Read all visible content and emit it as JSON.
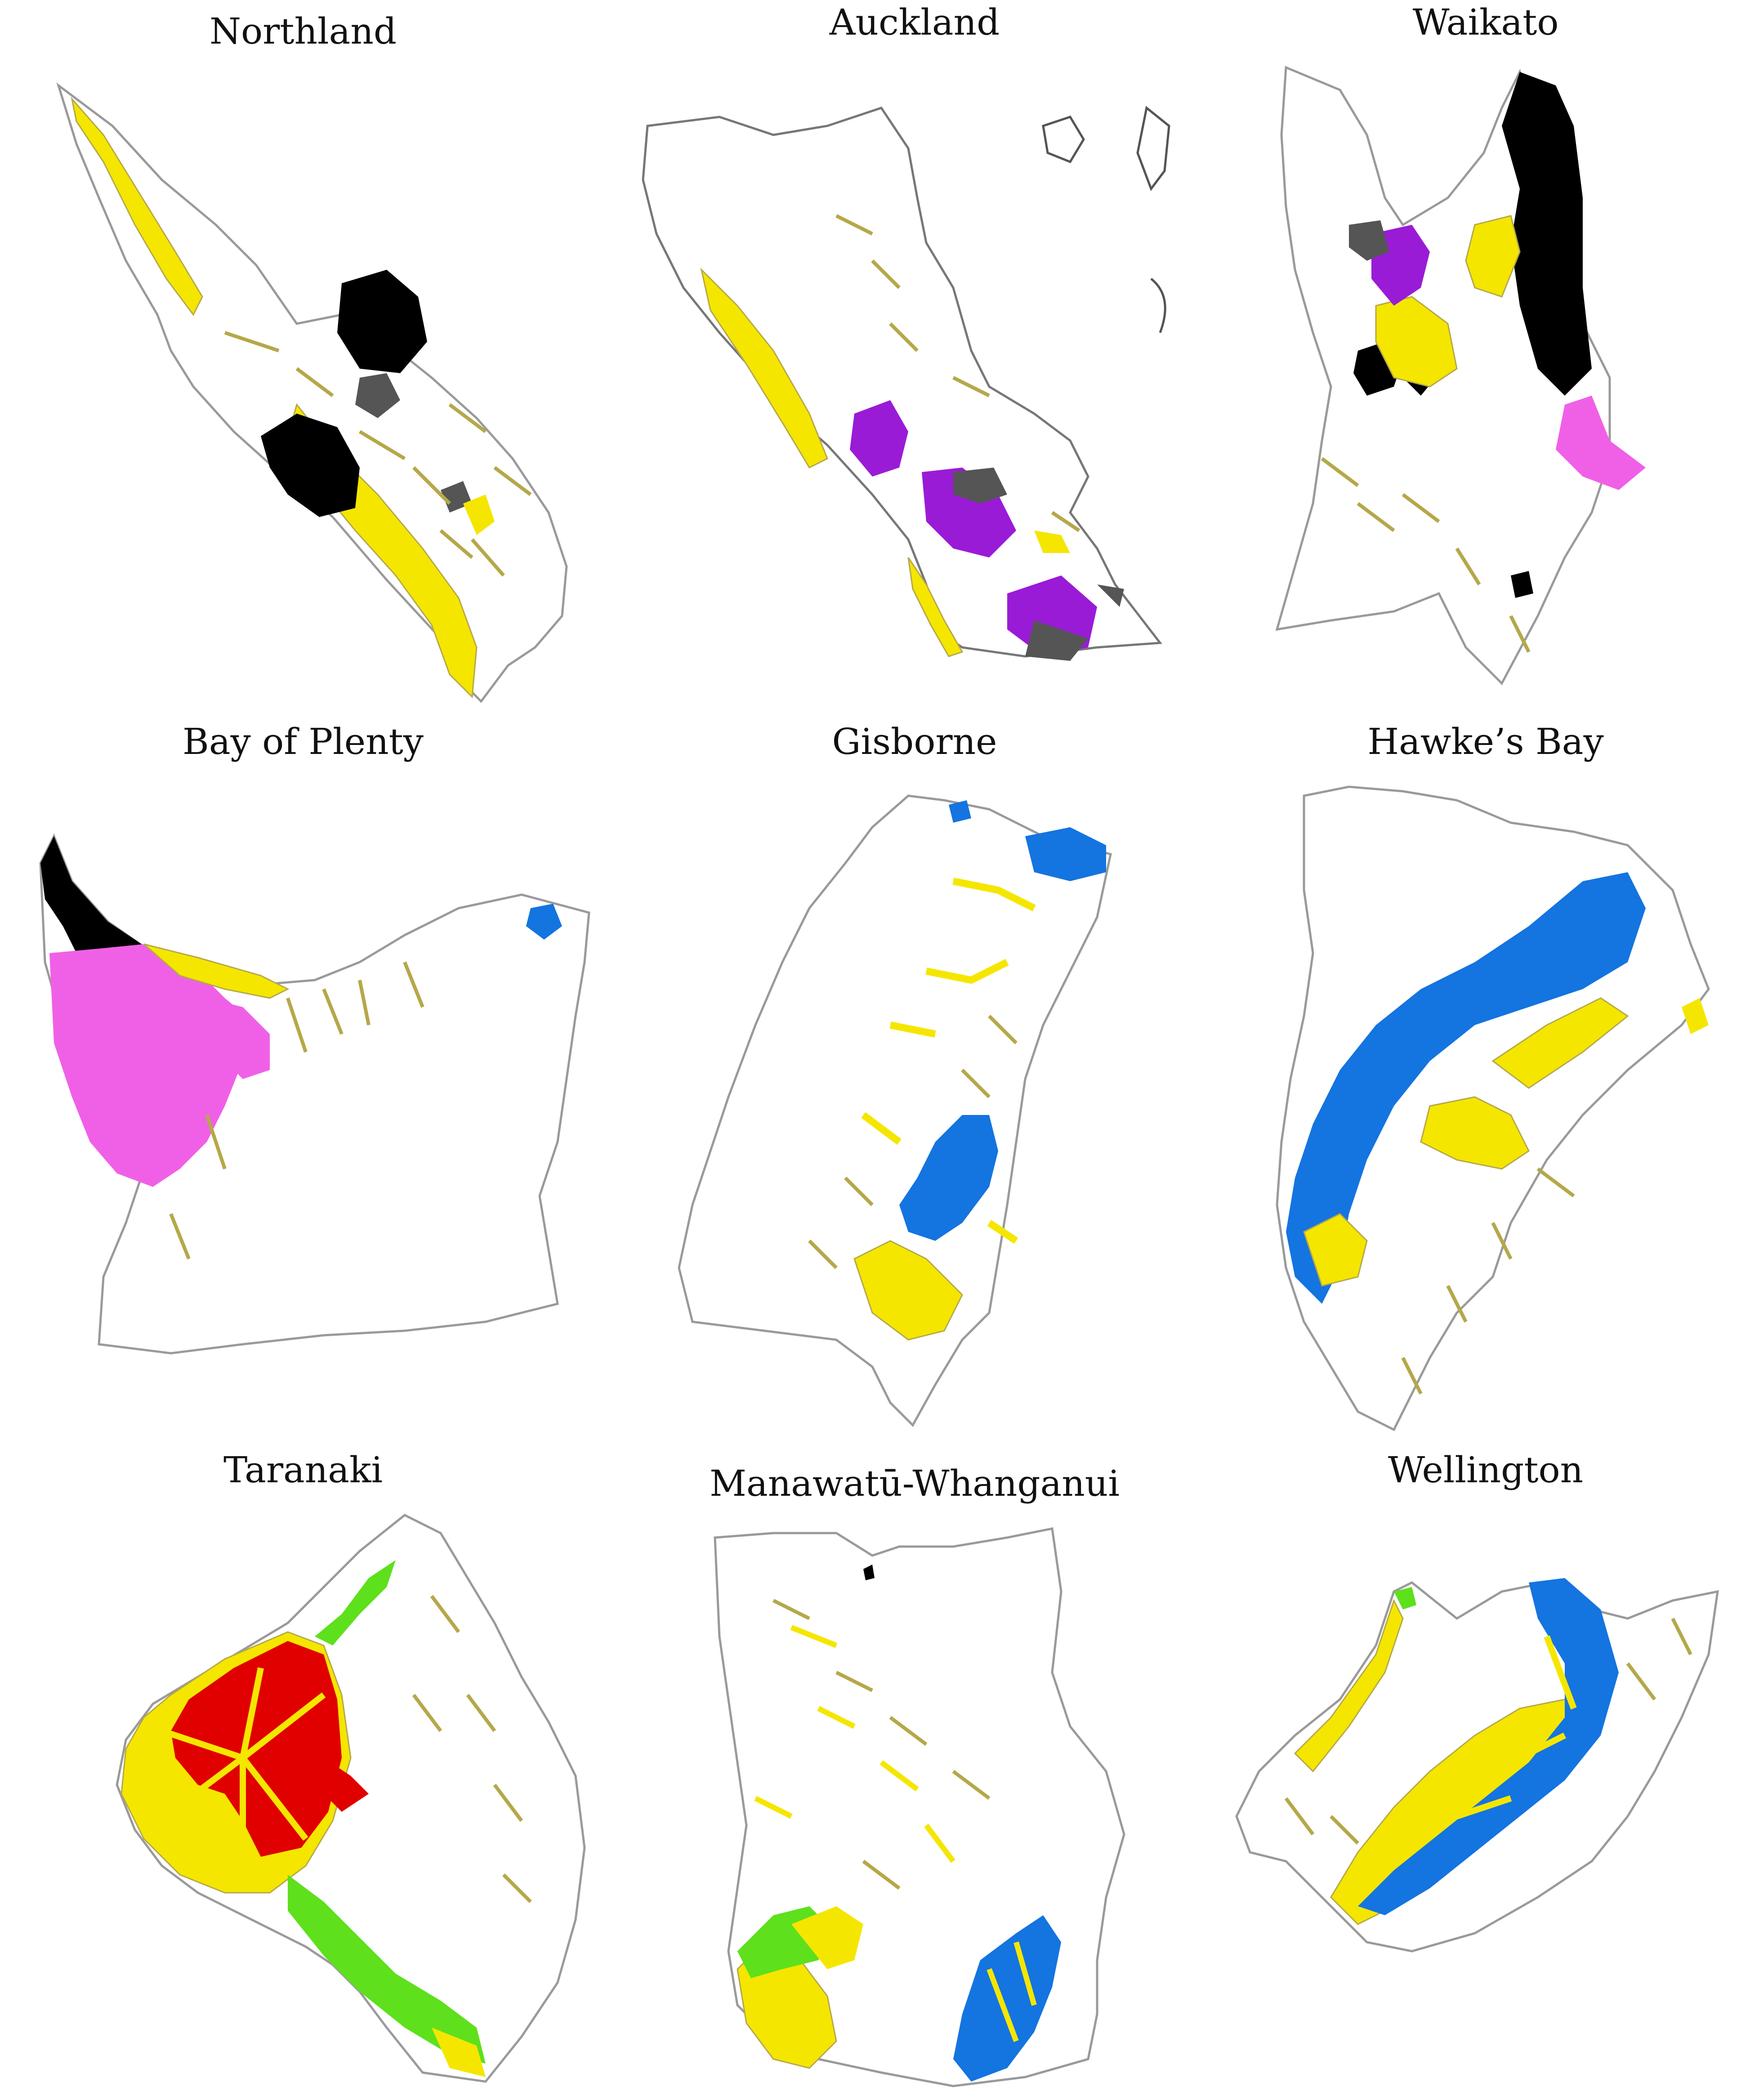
{
  "regions": [
    {
      "id": "northland",
      "title": "Northland"
    },
    {
      "id": "auckland",
      "title": "Auckland"
    },
    {
      "id": "waikato",
      "title": "Waikato"
    },
    {
      "id": "bay-of-plenty",
      "title": "Bay of Plenty"
    },
    {
      "id": "gisborne",
      "title": "Gisborne"
    },
    {
      "id": "hawkes-bay",
      "title": "Hawke’s Bay"
    },
    {
      "id": "taranaki",
      "title": "Taranaki"
    },
    {
      "id": "manawatu-whanganui",
      "title": "Manawatū-Whanganui"
    },
    {
      "id": "wellington",
      "title": "Wellington"
    }
  ],
  "colors": {
    "outline": "#9a9a9a",
    "yellow": "#f5e600",
    "olive": "#b5a84a",
    "black": "#000000",
    "dark_grey": "#555555",
    "purple": "#9a1bd6",
    "pink": "#f060e6",
    "blue": "#1474e0",
    "red": "#e00000",
    "green": "#5ee01c"
  }
}
